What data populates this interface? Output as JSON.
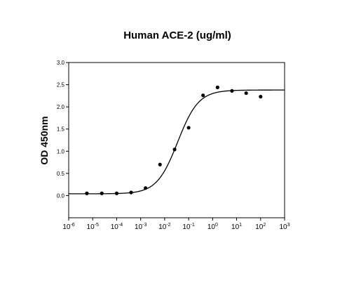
{
  "chart_data": {
    "type": "scatter",
    "title": "Human ACE-2 (ug/ml)",
    "xlabel": "",
    "ylabel": "OD 450nm",
    "x_scale": "log",
    "xlim": [
      1e-06,
      1000
    ],
    "ylim": [
      -0.5,
      3.0
    ],
    "x_ticks": [
      {
        "base": "10",
        "exp": "-6"
      },
      {
        "base": "10",
        "exp": "-5"
      },
      {
        "base": "10",
        "exp": "-4"
      },
      {
        "base": "10",
        "exp": "-3"
      },
      {
        "base": "10",
        "exp": "-2"
      },
      {
        "base": "10",
        "exp": "-1"
      },
      {
        "base": "10",
        "exp": "0"
      },
      {
        "base": "10",
        "exp": "1"
      },
      {
        "base": "10",
        "exp": "2"
      },
      {
        "base": "10",
        "exp": "3"
      }
    ],
    "y_ticks": [
      "0.0",
      "0.5",
      "1.0",
      "1.5",
      "2.0",
      "2.5",
      "3.0"
    ],
    "grid": false,
    "points": [
      {
        "x": 5.7e-06,
        "y": 0.05
      },
      {
        "x": 2.4e-05,
        "y": 0.05
      },
      {
        "x": 0.0001,
        "y": 0.05
      },
      {
        "x": 0.0004,
        "y": 0.07
      },
      {
        "x": 0.0016,
        "y": 0.17
      },
      {
        "x": 0.0064,
        "y": 0.7
      },
      {
        "x": 0.026,
        "y": 1.04
      },
      {
        "x": 0.1,
        "y": 1.53
      },
      {
        "x": 0.4,
        "y": 2.26
      },
      {
        "x": 1.6,
        "y": 2.44
      },
      {
        "x": 6.4,
        "y": 2.36
      },
      {
        "x": 25,
        "y": 2.31
      },
      {
        "x": 100,
        "y": 2.23
      }
    ],
    "fit_curve": {
      "model": "4PL",
      "bottom": 0.04,
      "top": 2.38,
      "ec50": 0.035,
      "hill": 1.0
    },
    "colors": {
      "points": "#000000",
      "curve": "#000000",
      "axes": "#000000"
    }
  }
}
